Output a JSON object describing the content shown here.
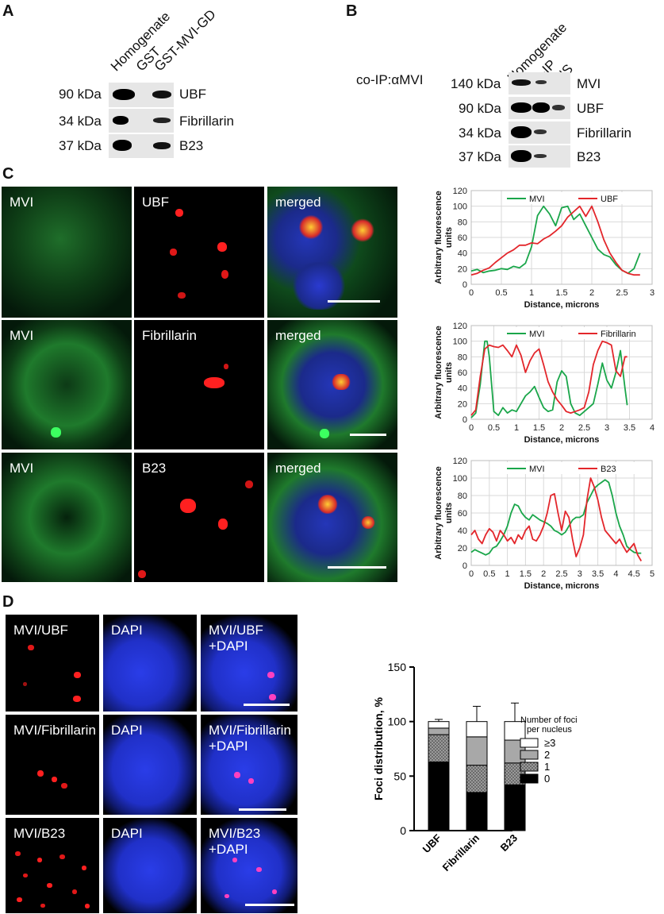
{
  "panelA": {
    "letter": "A",
    "columns": [
      "Homogenate",
      "GST",
      "GST-MVI-GD"
    ],
    "rows": [
      {
        "kda": "90 kDa",
        "protein": "UBF"
      },
      {
        "kda": "34 kDa",
        "protein": "Fibrillarin"
      },
      {
        "kda": "37 kDa",
        "protein": "B23"
      }
    ]
  },
  "panelB": {
    "letter": "B",
    "title": "co-IP:αMVI",
    "columns": [
      "Homogenate",
      "α-IP",
      "NS"
    ],
    "rows": [
      {
        "kda": "140 kDa",
        "protein": "MVI"
      },
      {
        "kda": "90 kDa",
        "protein": "UBF"
      },
      {
        "kda": "34 kDa",
        "protein": "Fibrillarin"
      },
      {
        "kda": "37 kDa",
        "protein": "B23"
      }
    ]
  },
  "panelC": {
    "letter": "C",
    "rows": [
      {
        "labels": [
          "MVI",
          "UBF",
          "merged"
        ]
      },
      {
        "labels": [
          "MVI",
          "Fibrillarin",
          "merged"
        ]
      },
      {
        "labels": [
          "MVI",
          "B23",
          "merged"
        ]
      }
    ]
  },
  "panelD": {
    "letter": "D",
    "rows": [
      {
        "labels": [
          "MVI/UBF",
          "DAPI",
          "MVI/UBF\n+DAPI"
        ]
      },
      {
        "labels": [
          "MVI/Fibrillarin",
          "DAPI",
          "MVI/Fibrillarin\n+DAPI"
        ]
      },
      {
        "labels": [
          "MVI/B23",
          "DAPI",
          "MVI/B23\n+DAPI"
        ]
      }
    ]
  },
  "colors": {
    "mvi": "#1aa64a",
    "red": "#e3262b",
    "dapi": "#1f2fe0"
  },
  "chart_data": [
    {
      "type": "line",
      "xlabel": "Distance, microns",
      "ylabel": "Arbitrary fluorescence units",
      "xlim": [
        0,
        3
      ],
      "ylim": [
        0,
        120
      ],
      "xticks": [
        "0",
        "0.5",
        "1",
        "1.5",
        "2",
        "2.5",
        "3"
      ],
      "yticks": [
        "0",
        "20",
        "40",
        "60",
        "80",
        "100",
        "120"
      ],
      "legend_placement": "top",
      "grid": true,
      "series": [
        {
          "name": "MVI",
          "color": "#1aa64a",
          "x": [
            0,
            0.1,
            0.2,
            0.3,
            0.4,
            0.5,
            0.6,
            0.7,
            0.8,
            0.9,
            1.0,
            1.1,
            1.2,
            1.3,
            1.4,
            1.5,
            1.6,
            1.7,
            1.8,
            1.9,
            2.0,
            2.1,
            2.2,
            2.3,
            2.4,
            2.5,
            2.6,
            2.7,
            2.8
          ],
          "y": [
            17,
            19,
            15,
            17,
            18,
            20,
            19,
            23,
            21,
            27,
            48,
            88,
            100,
            90,
            75,
            98,
            100,
            83,
            90,
            75,
            60,
            45,
            38,
            35,
            25,
            18,
            14,
            20,
            40
          ]
        },
        {
          "name": "UBF",
          "color": "#e3262b",
          "x": [
            0,
            0.1,
            0.2,
            0.3,
            0.4,
            0.5,
            0.6,
            0.7,
            0.8,
            0.9,
            1.0,
            1.1,
            1.2,
            1.3,
            1.4,
            1.5,
            1.6,
            1.7,
            1.8,
            1.9,
            2.0,
            2.1,
            2.2,
            2.3,
            2.4,
            2.5,
            2.6,
            2.7,
            2.8
          ],
          "y": [
            12,
            14,
            18,
            21,
            28,
            34,
            40,
            44,
            50,
            50,
            53,
            52,
            58,
            62,
            68,
            75,
            86,
            93,
            100,
            87,
            100,
            80,
            57,
            40,
            28,
            18,
            14,
            12,
            12
          ]
        }
      ]
    },
    {
      "type": "line",
      "xlabel": "Distance, microns",
      "ylabel": "Arbitrary fluorescence units",
      "xlim": [
        0,
        4
      ],
      "ylim": [
        0,
        120
      ],
      "xticks": [
        "0",
        "0.5",
        "1",
        "1.5",
        "2",
        "2.5",
        "3",
        "3.5",
        "4"
      ],
      "yticks": [
        "0",
        "20",
        "40",
        "60",
        "80",
        "100",
        "120"
      ],
      "legend_placement": "top",
      "grid": true,
      "series": [
        {
          "name": "MVI",
          "color": "#1aa64a",
          "x": [
            0,
            0.1,
            0.2,
            0.3,
            0.35,
            0.4,
            0.5,
            0.6,
            0.7,
            0.8,
            0.9,
            1.0,
            1.1,
            1.2,
            1.3,
            1.4,
            1.5,
            1.6,
            1.7,
            1.8,
            1.9,
            2.0,
            2.1,
            2.2,
            2.3,
            2.4,
            2.5,
            2.6,
            2.7,
            2.8,
            2.9,
            3.0,
            3.1,
            3.2,
            3.3,
            3.4,
            3.45
          ],
          "y": [
            2,
            8,
            45,
            100,
            100,
            80,
            10,
            5,
            15,
            8,
            12,
            10,
            20,
            30,
            35,
            42,
            28,
            15,
            10,
            12,
            48,
            62,
            55,
            20,
            8,
            5,
            10,
            15,
            20,
            45,
            72,
            50,
            40,
            60,
            88,
            40,
            18
          ]
        },
        {
          "name": "Fibrillarin",
          "color": "#e3262b",
          "x": [
            0,
            0.1,
            0.2,
            0.3,
            0.4,
            0.5,
            0.6,
            0.7,
            0.8,
            0.9,
            1.0,
            1.1,
            1.2,
            1.3,
            1.4,
            1.5,
            1.6,
            1.7,
            1.8,
            1.9,
            2.0,
            2.1,
            2.2,
            2.3,
            2.4,
            2.5,
            2.6,
            2.7,
            2.8,
            2.9,
            3.0,
            3.1,
            3.2,
            3.3,
            3.4,
            3.45
          ],
          "y": [
            5,
            12,
            55,
            90,
            95,
            93,
            92,
            95,
            88,
            80,
            95,
            82,
            60,
            75,
            85,
            90,
            70,
            48,
            35,
            25,
            18,
            10,
            8,
            10,
            12,
            15,
            35,
            70,
            88,
            100,
            98,
            95,
            62,
            55,
            80,
            80
          ]
        }
      ]
    },
    {
      "type": "line",
      "xlabel": "Distance, microns",
      "ylabel": "Arbitrary fluorescence units",
      "xlim": [
        0,
        5
      ],
      "ylim": [
        0,
        120
      ],
      "xticks": [
        "0",
        "0.5",
        "1",
        "1.5",
        "2",
        "2.5",
        "3",
        "3.5",
        "4",
        "4.5",
        "5"
      ],
      "yticks": [
        "0",
        "20",
        "40",
        "60",
        "80",
        "100",
        "120"
      ],
      "legend_placement": "top",
      "grid": true,
      "series": [
        {
          "name": "MVI",
          "color": "#1aa64a",
          "x": [
            0,
            0.1,
            0.2,
            0.3,
            0.4,
            0.5,
            0.6,
            0.7,
            0.8,
            0.9,
            1.0,
            1.1,
            1.2,
            1.3,
            1.4,
            1.5,
            1.6,
            1.7,
            1.8,
            1.9,
            2.0,
            2.1,
            2.2,
            2.3,
            2.4,
            2.5,
            2.6,
            2.7,
            2.8,
            2.9,
            3.0,
            3.1,
            3.2,
            3.3,
            3.4,
            3.5,
            3.6,
            3.7,
            3.8,
            3.9,
            4.0,
            4.1,
            4.2,
            4.3,
            4.4,
            4.5,
            4.6,
            4.7
          ],
          "y": [
            15,
            18,
            16,
            14,
            12,
            14,
            20,
            22,
            28,
            35,
            45,
            60,
            70,
            68,
            60,
            55,
            52,
            58,
            55,
            52,
            50,
            48,
            45,
            40,
            38,
            35,
            38,
            45,
            52,
            55,
            55,
            58,
            72,
            80,
            88,
            92,
            95,
            98,
            95,
            80,
            60,
            45,
            35,
            22,
            18,
            15,
            14,
            14
          ]
        },
        {
          "name": "B23",
          "color": "#e3262b",
          "x": [
            0,
            0.1,
            0.2,
            0.3,
            0.4,
            0.5,
            0.6,
            0.7,
            0.8,
            0.9,
            1.0,
            1.1,
            1.2,
            1.3,
            1.4,
            1.5,
            1.6,
            1.7,
            1.8,
            1.9,
            2.0,
            2.1,
            2.2,
            2.3,
            2.4,
            2.5,
            2.6,
            2.7,
            2.8,
            2.9,
            3.0,
            3.1,
            3.2,
            3.3,
            3.4,
            3.5,
            3.6,
            3.7,
            3.8,
            3.9,
            4.0,
            4.1,
            4.2,
            4.3,
            4.4,
            4.5,
            4.6,
            4.7
          ],
          "y": [
            35,
            40,
            30,
            25,
            35,
            42,
            38,
            28,
            40,
            35,
            28,
            32,
            25,
            35,
            30,
            40,
            45,
            30,
            28,
            35,
            45,
            60,
            80,
            82,
            60,
            40,
            62,
            55,
            30,
            10,
            20,
            35,
            75,
            100,
            90,
            75,
            55,
            40,
            35,
            30,
            25,
            30,
            22,
            15,
            20,
            25,
            12,
            5
          ]
        }
      ]
    },
    {
      "type": "bar",
      "stacked": true,
      "ylabel": "Foci distribution, %",
      "xlabel": "",
      "ylim": [
        0,
        150
      ],
      "yticks": [
        "0",
        "50",
        "100",
        "150"
      ],
      "categories": [
        "UBF",
        "Fibrillarin",
        "B23"
      ],
      "legend_title": "Number of foci per nucleus",
      "legend_placement": "right",
      "series": [
        {
          "name": "0",
          "color": "#000000",
          "values": [
            63,
            35,
            42
          ],
          "err": [
            0,
            0,
            0
          ]
        },
        {
          "name": "1",
          "color": "#8f8f8f",
          "pattern": "dots",
          "values": [
            25,
            25,
            20
          ],
          "err": [
            0,
            16,
            5
          ]
        },
        {
          "name": "2",
          "color": "#a8a8a8",
          "values": [
            6,
            26,
            21
          ],
          "err": [
            2,
            0,
            2
          ]
        },
        {
          "name": "≥3",
          "color": "#ffffff",
          "values": [
            6,
            14,
            17
          ],
          "err": [
            2,
            14,
            17
          ]
        }
      ]
    }
  ]
}
